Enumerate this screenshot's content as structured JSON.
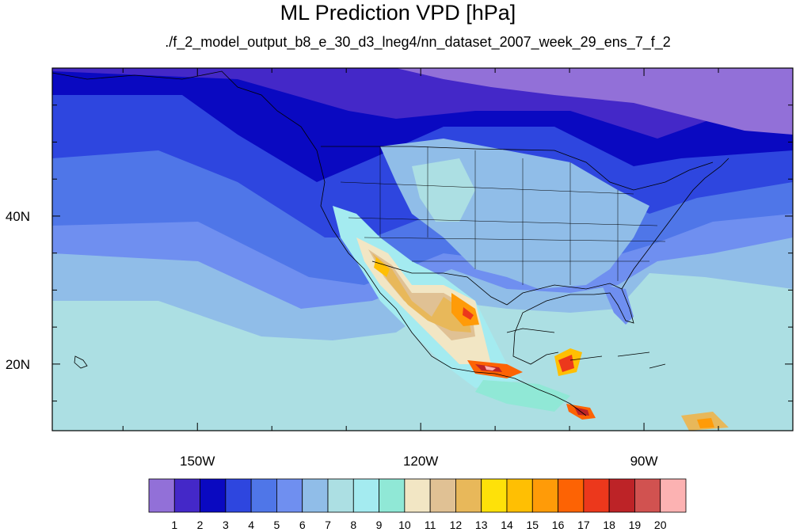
{
  "title": "ML Prediction VPD [hPa]",
  "subtitle": "./f_2_model_output_b8_e_30_d3_lneg4/nn_dataset_2007_week_29_ens_7_f_2",
  "axes": {
    "lon_ticks": [
      {
        "lon": -150,
        "label": "150W"
      },
      {
        "lon": -120,
        "label": "120W"
      },
      {
        "lon": -90,
        "label": "90W"
      }
    ],
    "lat_ticks": [
      {
        "lat": 40,
        "label": "40N"
      },
      {
        "lat": 20,
        "label": "20N"
      }
    ],
    "lon_range": [
      -169.5,
      -70
    ],
    "lat_range": [
      11,
      60
    ]
  },
  "colorbar": {
    "colors": [
      "#9270d8",
      "#4428c8",
      "#0a09c1",
      "#2e46df",
      "#4f76e8",
      "#6f8ff0",
      "#90bde8",
      "#acdfe3",
      "#a4ebf0",
      "#90e8d6",
      "#f2e6c4",
      "#e0c194",
      "#e8b85a",
      "#fee109",
      "#ffbf03",
      "#ff9b08",
      "#fd6304",
      "#ec381c",
      "#bd2327",
      "#d15250",
      "#fcb2b2"
    ],
    "labels": [
      "1",
      "2",
      "3",
      "4",
      "5",
      "6",
      "7",
      "8",
      "9",
      "10",
      "11",
      "12",
      "13",
      "14",
      "15",
      "16",
      "17",
      "18",
      "19",
      "20"
    ]
  }
}
